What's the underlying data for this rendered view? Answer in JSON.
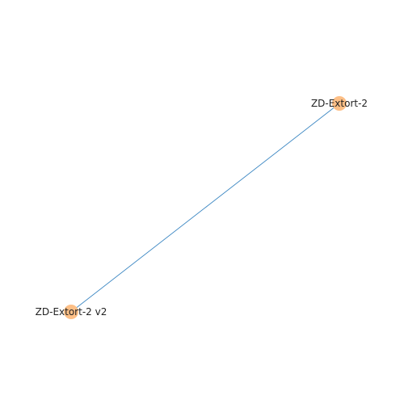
{
  "graph": {
    "nodes": [
      {
        "id": "n1",
        "label": "ZD-Extort-2"
      },
      {
        "id": "n2",
        "label": "ZD-Extort-2 v2"
      }
    ],
    "edges": [
      {
        "source": "n1",
        "target": "n2"
      }
    ]
  },
  "colors": {
    "node_fill": "#fdbf86",
    "edge_stroke": "#3a86c2",
    "label_text": "#222222",
    "background": "#ffffff"
  }
}
